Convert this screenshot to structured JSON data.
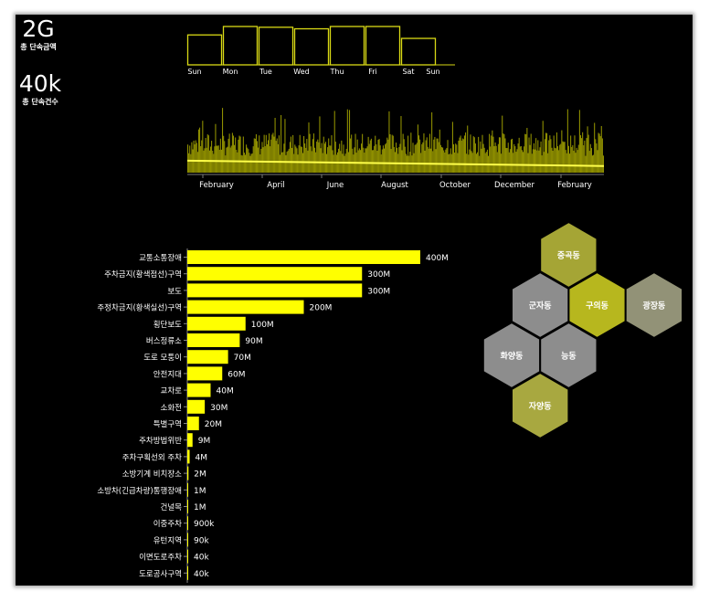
{
  "kpis": [
    {
      "value": "2G",
      "label": "총 단속금액"
    },
    {
      "value": "40k",
      "label": "총 단속건수"
    }
  ],
  "chart_data": [
    {
      "type": "bar",
      "name": "weekday",
      "categories": [
        "Sun",
        "Mon",
        "Tue",
        "Wed",
        "Thu",
        "Fri",
        "Sat",
        "Sun"
      ],
      "values": [
        0.78,
        1.0,
        0.98,
        0.94,
        1.0,
        1.0,
        0.69,
        0
      ]
    },
    {
      "type": "line",
      "name": "daily-timeline",
      "xlabels": [
        "February",
        "April",
        "June",
        "August",
        "October",
        "December",
        "February"
      ],
      "ylim": [
        0,
        1
      ],
      "trend_start": 0.18,
      "trend_end": 0.1
    },
    {
      "type": "bar",
      "orientation": "horizontal",
      "categories": [
        "교통소통장애",
        "주차금지(황색점선)구역",
        "보도",
        "주정차금지(황색실선)구역",
        "횡단보도",
        "버스정류소",
        "도로 모퉁이",
        "안전지대",
        "교차로",
        "소화전",
        "특별구역",
        "주차방법위반",
        "주차구획선외 주차",
        "소방기계 비치장소",
        "소방차(긴급차량)통행장애",
        "건널목",
        "이중주차",
        "유턴지역",
        "이면도로주차",
        "도로공사구역"
      ],
      "values": [
        400000000,
        300000000,
        300000000,
        200000000,
        100000000,
        90000000,
        70000000,
        60000000,
        40000000,
        30000000,
        20000000,
        9000000,
        4000000,
        2000000,
        1000000,
        1000000,
        900000,
        90000,
        40000,
        40000
      ],
      "value_labels": [
        "400M",
        "300M",
        "300M",
        "200M",
        "100M",
        "90M",
        "70M",
        "60M",
        "40M",
        "30M",
        "20M",
        "9M",
        "4M",
        "2M",
        "1M",
        "1M",
        "900k",
        "90k",
        "40k",
        "40k"
      ],
      "bar_color": "#ffff00"
    }
  ],
  "hexmap": [
    {
      "label": "중곡동",
      "col": 2,
      "row": 0,
      "color": "#a5a535"
    },
    {
      "label": "군자동",
      "col": 1,
      "row": 1,
      "color": "#8d8d8d"
    },
    {
      "label": "구의동",
      "col": 3,
      "row": 1,
      "color": "#b7b71e"
    },
    {
      "label": "광장동",
      "col": 5,
      "row": 1,
      "color": "#929277"
    },
    {
      "label": "화양동",
      "col": 0,
      "row": 2,
      "color": "#8d8d8d"
    },
    {
      "label": "능동",
      "col": 2,
      "row": 2,
      "color": "#8d8d8d"
    },
    {
      "label": "자양동",
      "col": 1,
      "row": 3,
      "color": "#a8a840"
    }
  ]
}
